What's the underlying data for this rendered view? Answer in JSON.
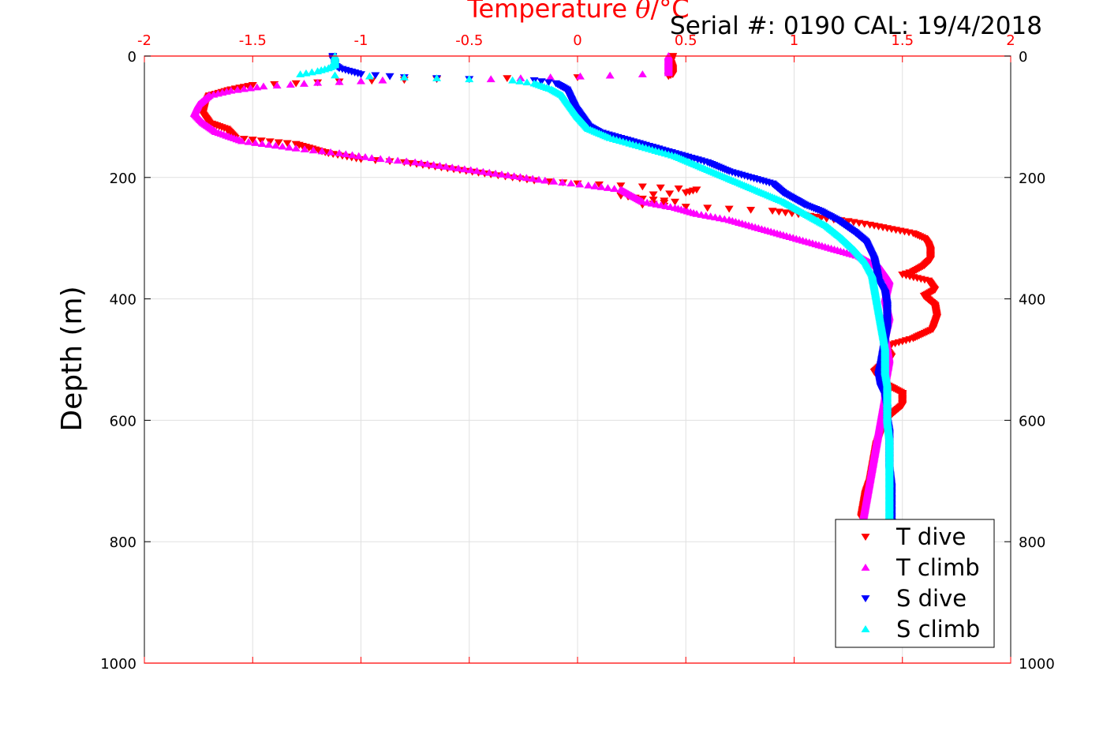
{
  "chart_data": {
    "type": "scatter",
    "title": "Serial #: 0190  CAL: 19/4/2018",
    "xlabel_prefix": "Temperature ",
    "xlabel_symbol": "θ",
    "xlabel_suffix": "/°C",
    "ylabel": "Depth (m)",
    "xlim": [
      -2,
      2
    ],
    "ylim": [
      1000,
      0
    ],
    "y_reversed": true,
    "x_axis_position": "top",
    "grid": true,
    "legend_position": "bottom-right",
    "x_ticks": [
      -2,
      -1.5,
      -1,
      -0.5,
      0,
      0.5,
      1,
      1.5,
      2
    ],
    "x_tick_labels": [
      "-2",
      "-1.5",
      "-1",
      "-0.5",
      "0",
      "0.5",
      "1",
      "1.5",
      "2"
    ],
    "y_ticks": [
      0,
      200,
      400,
      600,
      800,
      1000
    ],
    "y_tick_labels": [
      "0",
      "200",
      "400",
      "600",
      "800",
      "1000"
    ],
    "colors": {
      "x_axis": "#ff0000",
      "grid": "#e0e0e0",
      "frame": "#000000"
    },
    "series": [
      {
        "name": "T dive",
        "color": "#ff0000",
        "marker": "triangle-down",
        "points": [
          [
            0.44,
            0
          ],
          [
            0.43,
            10
          ],
          [
            0.44,
            20
          ],
          [
            0.44,
            30
          ],
          [
            0.42,
            33
          ],
          [
            0.0,
            35
          ],
          [
            -0.65,
            38
          ],
          [
            -1.1,
            42
          ],
          [
            -1.5,
            48
          ],
          [
            -1.6,
            55
          ],
          [
            -1.7,
            65
          ],
          [
            -1.72,
            80
          ],
          [
            -1.73,
            95
          ],
          [
            -1.7,
            110
          ],
          [
            -1.62,
            120
          ],
          [
            -1.58,
            135
          ],
          [
            -1.3,
            145
          ],
          [
            -1.15,
            160
          ],
          [
            -1.0,
            170
          ],
          [
            -0.8,
            175
          ],
          [
            -0.6,
            185
          ],
          [
            -0.4,
            195
          ],
          [
            -0.3,
            200
          ],
          [
            -0.2,
            205
          ],
          [
            0.0,
            210
          ],
          [
            0.3,
            215
          ],
          [
            0.55,
            220
          ],
          [
            0.5,
            225
          ],
          [
            0.35,
            228
          ],
          [
            0.2,
            230
          ],
          [
            0.3,
            235
          ],
          [
            0.45,
            240
          ],
          [
            0.3,
            245
          ],
          [
            0.6,
            250
          ],
          [
            0.9,
            255
          ],
          [
            1.05,
            262
          ],
          [
            1.15,
            268
          ],
          [
            1.25,
            272
          ],
          [
            1.35,
            278
          ],
          [
            1.45,
            285
          ],
          [
            1.55,
            292
          ],
          [
            1.6,
            300
          ],
          [
            1.62,
            310
          ],
          [
            1.63,
            320
          ],
          [
            1.63,
            335
          ],
          [
            1.6,
            345
          ],
          [
            1.55,
            355
          ],
          [
            1.5,
            360
          ],
          [
            1.62,
            370
          ],
          [
            1.65,
            385
          ],
          [
            1.6,
            395
          ],
          [
            1.65,
            410
          ],
          [
            1.66,
            430
          ],
          [
            1.64,
            450
          ],
          [
            1.55,
            465
          ],
          [
            1.5,
            470
          ],
          [
            1.45,
            475
          ],
          [
            1.42,
            480
          ],
          [
            1.45,
            495
          ],
          [
            1.4,
            510
          ],
          [
            1.37,
            520
          ],
          [
            1.42,
            540
          ],
          [
            1.5,
            555
          ],
          [
            1.5,
            575
          ],
          [
            1.45,
            590
          ],
          [
            1.42,
            605
          ],
          [
            1.4,
            620
          ],
          [
            1.38,
            640
          ],
          [
            1.37,
            660
          ],
          [
            1.36,
            680
          ],
          [
            1.35,
            700
          ],
          [
            1.33,
            720
          ],
          [
            1.32,
            740
          ],
          [
            1.31,
            760
          ]
        ]
      },
      {
        "name": "T climb",
        "color": "#ff00ff",
        "marker": "triangle-up",
        "points": [
          [
            0.42,
            0
          ],
          [
            0.42,
            10
          ],
          [
            0.42,
            20
          ],
          [
            0.42,
            28
          ],
          [
            0.3,
            30
          ],
          [
            0.15,
            32
          ],
          [
            -0.4,
            38
          ],
          [
            -0.9,
            40
          ],
          [
            -1.2,
            44
          ],
          [
            -1.45,
            50
          ],
          [
            -1.6,
            57
          ],
          [
            -1.7,
            65
          ],
          [
            -1.75,
            80
          ],
          [
            -1.77,
            95
          ],
          [
            -1.73,
            110
          ],
          [
            -1.67,
            125
          ],
          [
            -1.55,
            140
          ],
          [
            -1.3,
            152
          ],
          [
            -1.1,
            160
          ],
          [
            -0.95,
            168
          ],
          [
            -0.75,
            175
          ],
          [
            -0.55,
            185
          ],
          [
            -0.35,
            195
          ],
          [
            -0.15,
            205
          ],
          [
            0.05,
            213
          ],
          [
            0.2,
            220
          ],
          [
            0.25,
            230
          ],
          [
            0.3,
            240
          ],
          [
            0.45,
            250
          ],
          [
            0.55,
            260
          ],
          [
            0.7,
            270
          ],
          [
            0.85,
            285
          ],
          [
            0.95,
            295
          ],
          [
            1.1,
            310
          ],
          [
            1.2,
            320
          ],
          [
            1.3,
            330
          ],
          [
            1.35,
            340
          ],
          [
            1.4,
            350
          ],
          [
            1.42,
            360
          ],
          [
            1.44,
            370
          ],
          [
            1.43,
            385
          ],
          [
            1.42,
            400
          ],
          [
            1.43,
            415
          ],
          [
            1.44,
            430
          ],
          [
            1.43,
            445
          ],
          [
            1.42,
            460
          ],
          [
            1.43,
            480
          ],
          [
            1.44,
            500
          ],
          [
            1.43,
            520
          ],
          [
            1.42,
            540
          ],
          [
            1.42,
            560
          ],
          [
            1.41,
            580
          ],
          [
            1.4,
            600
          ],
          [
            1.39,
            620
          ],
          [
            1.38,
            640
          ],
          [
            1.37,
            660
          ],
          [
            1.36,
            680
          ],
          [
            1.35,
            700
          ],
          [
            1.34,
            720
          ],
          [
            1.33,
            740
          ],
          [
            1.32,
            760
          ]
        ]
      },
      {
        "name": "S dive",
        "color": "#0000ff",
        "marker": "triangle-down",
        "points": [
          [
            -1.13,
            0
          ],
          [
            -1.13,
            5
          ],
          [
            -1.12,
            10
          ],
          [
            -1.12,
            15
          ],
          [
            -1.1,
            20
          ],
          [
            -1.0,
            30
          ],
          [
            -0.8,
            35
          ],
          [
            -0.5,
            38
          ],
          [
            -0.2,
            40
          ],
          [
            -0.1,
            45
          ],
          [
            -0.05,
            55
          ],
          [
            -0.03,
            70
          ],
          [
            -0.01,
            85
          ],
          [
            0.02,
            100
          ],
          [
            0.05,
            115
          ],
          [
            0.1,
            125
          ],
          [
            0.2,
            135
          ],
          [
            0.3,
            145
          ],
          [
            0.45,
            160
          ],
          [
            0.6,
            175
          ],
          [
            0.7,
            190
          ],
          [
            0.8,
            200
          ],
          [
            0.9,
            210
          ],
          [
            0.95,
            225
          ],
          [
            1.0,
            235
          ],
          [
            1.05,
            245
          ],
          [
            1.12,
            255
          ],
          [
            1.2,
            270
          ],
          [
            1.28,
            290
          ],
          [
            1.33,
            305
          ],
          [
            1.35,
            320
          ],
          [
            1.37,
            335
          ],
          [
            1.38,
            350
          ],
          [
            1.39,
            370
          ],
          [
            1.42,
            390
          ],
          [
            1.43,
            410
          ],
          [
            1.43,
            430
          ],
          [
            1.43,
            450
          ],
          [
            1.42,
            470
          ],
          [
            1.41,
            490
          ],
          [
            1.4,
            510
          ],
          [
            1.39,
            525
          ],
          [
            1.4,
            545
          ],
          [
            1.42,
            560
          ],
          [
            1.43,
            580
          ],
          [
            1.43,
            600
          ],
          [
            1.44,
            620
          ],
          [
            1.44,
            650
          ],
          [
            1.44,
            680
          ],
          [
            1.45,
            710
          ],
          [
            1.45,
            740
          ],
          [
            1.45,
            770
          ]
        ]
      },
      {
        "name": "S climb",
        "color": "#00ffff",
        "marker": "triangle-up",
        "points": [
          [
            -1.12,
            0
          ],
          [
            -1.12,
            5
          ],
          [
            -1.12,
            10
          ],
          [
            -1.12,
            15
          ],
          [
            -1.15,
            20
          ],
          [
            -1.2,
            25
          ],
          [
            -1.28,
            30
          ],
          [
            -0.8,
            35
          ],
          [
            -0.5,
            38
          ],
          [
            -0.3,
            40
          ],
          [
            -0.2,
            45
          ],
          [
            -0.12,
            55
          ],
          [
            -0.07,
            65
          ],
          [
            -0.04,
            80
          ],
          [
            0.0,
            100
          ],
          [
            0.05,
            120
          ],
          [
            0.15,
            135
          ],
          [
            0.3,
            150
          ],
          [
            0.45,
            165
          ],
          [
            0.55,
            180
          ],
          [
            0.65,
            195
          ],
          [
            0.75,
            210
          ],
          [
            0.85,
            225
          ],
          [
            0.95,
            240
          ],
          [
            1.05,
            260
          ],
          [
            1.15,
            280
          ],
          [
            1.22,
            300
          ],
          [
            1.28,
            320
          ],
          [
            1.33,
            340
          ],
          [
            1.36,
            360
          ],
          [
            1.37,
            380
          ],
          [
            1.38,
            400
          ],
          [
            1.39,
            420
          ],
          [
            1.4,
            440
          ],
          [
            1.41,
            460
          ],
          [
            1.42,
            480
          ],
          [
            1.42,
            500
          ],
          [
            1.42,
            520
          ],
          [
            1.43,
            540
          ],
          [
            1.43,
            560
          ],
          [
            1.43,
            580
          ],
          [
            1.43,
            600
          ],
          [
            1.44,
            630
          ],
          [
            1.44,
            660
          ],
          [
            1.44,
            690
          ],
          [
            1.44,
            720
          ],
          [
            1.44,
            750
          ],
          [
            1.44,
            770
          ]
        ]
      }
    ]
  }
}
